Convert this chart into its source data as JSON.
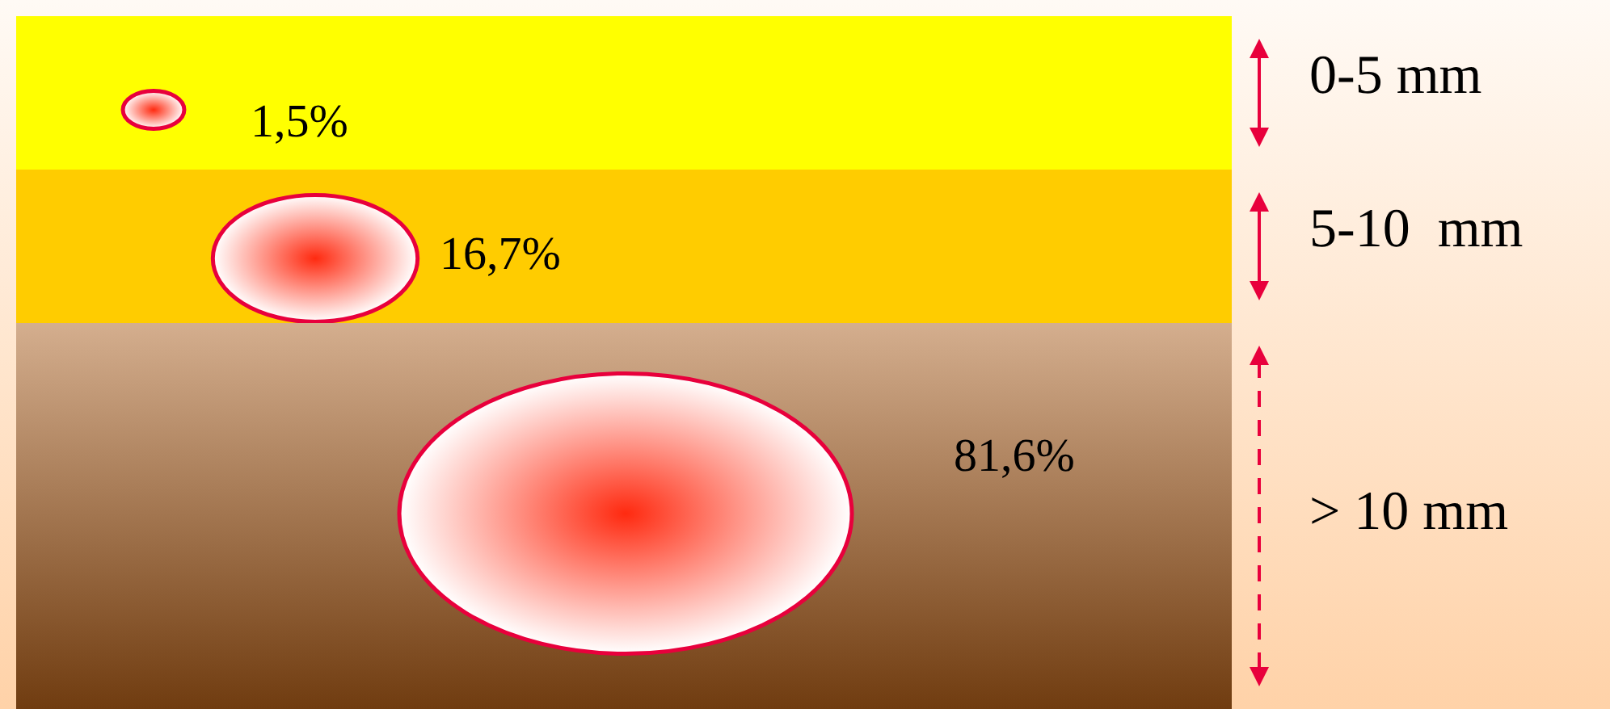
{
  "chart_data": {
    "type": "other",
    "categories": [
      "0-5 mm",
      "5-10  mm",
      "> 10 mm"
    ],
    "values": [
      1.5,
      16.7,
      81.6
    ],
    "value_labels": [
      "1,5%",
      "16,7%",
      "81,6%"
    ],
    "colors": [
      "#ffff00",
      "#ffcc00",
      "#d4ae8e"
    ]
  }
}
